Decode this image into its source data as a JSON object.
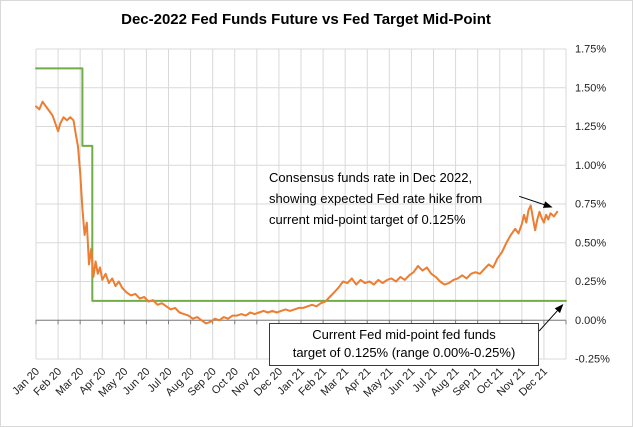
{
  "chart_data": {
    "type": "line",
    "title": "Dec-2022 Fed Funds Future vs Fed Target Mid-Point",
    "grid": true,
    "legend": "none",
    "colors": {
      "orange": "#ED7D31",
      "green": "#70AD47",
      "grid": "#D9D9D9",
      "axis": "#7F7F7F",
      "text": "#1F1F1F",
      "annotation": "#000000",
      "background": "#FFFFFF"
    },
    "x_axis": {
      "unit": "month",
      "range_months": [
        0,
        24
      ],
      "tick_labels": [
        "Jan 20",
        "Feb 20",
        "Mar 20",
        "Apr 20",
        "May 20",
        "Jun 20",
        "Jul 20",
        "Aug 20",
        "Sep 20",
        "Oct 20",
        "Nov 20",
        "Dec 20",
        "Jan 21",
        "Feb 21",
        "Mar 21",
        "Apr 21",
        "May 21",
        "Jun 21",
        "Jul 21",
        "Aug 21",
        "Sep 21",
        "Oct 21",
        "Nov 21",
        "Dec 21"
      ]
    },
    "y_axis": {
      "side": "right",
      "min": -0.25,
      "max": 1.75,
      "step": 0.25,
      "tick_labels": [
        "-0.25%",
        "0.00%",
        "0.25%",
        "0.50%",
        "0.75%",
        "1.00%",
        "1.25%",
        "1.50%",
        "1.75%"
      ]
    },
    "series": [
      {
        "id": "fed-target-mid-point",
        "name": "Fed target mid-point",
        "color": "#70AD47",
        "width": 2,
        "points": [
          [
            0,
            1.625
          ],
          [
            2.1,
            1.625
          ],
          [
            2.1,
            1.125
          ],
          [
            2.55,
            1.125
          ],
          [
            2.55,
            0.125
          ],
          [
            24,
            0.125
          ]
        ]
      },
      {
        "id": "dec-2022-fed-funds-future",
        "name": "Dec-2022 fed funds future (consensus funds rate)",
        "color": "#ED7D31",
        "width": 2,
        "points": [
          [
            0,
            1.38
          ],
          [
            0.15,
            1.36
          ],
          [
            0.3,
            1.41
          ],
          [
            0.45,
            1.38
          ],
          [
            0.6,
            1.35
          ],
          [
            0.75,
            1.32
          ],
          [
            0.9,
            1.26
          ],
          [
            1,
            1.22
          ],
          [
            1.1,
            1.27
          ],
          [
            1.25,
            1.31
          ],
          [
            1.4,
            1.29
          ],
          [
            1.55,
            1.31
          ],
          [
            1.7,
            1.29
          ],
          [
            1.8,
            1.2
          ],
          [
            1.9,
            1.12
          ],
          [
            2,
            0.95
          ],
          [
            2.1,
            0.72
          ],
          [
            2.2,
            0.55
          ],
          [
            2.3,
            0.63
          ],
          [
            2.4,
            0.36
          ],
          [
            2.5,
            0.46
          ],
          [
            2.6,
            0.28
          ],
          [
            2.7,
            0.38
          ],
          [
            2.8,
            0.3
          ],
          [
            2.9,
            0.34
          ],
          [
            3,
            0.26
          ],
          [
            3.15,
            0.3
          ],
          [
            3.3,
            0.24
          ],
          [
            3.45,
            0.27
          ],
          [
            3.6,
            0.22
          ],
          [
            3.75,
            0.25
          ],
          [
            3.9,
            0.21
          ],
          [
            4.1,
            0.18
          ],
          [
            4.3,
            0.16
          ],
          [
            4.5,
            0.17
          ],
          [
            4.7,
            0.14
          ],
          [
            4.9,
            0.15
          ],
          [
            5.1,
            0.12
          ],
          [
            5.3,
            0.13
          ],
          [
            5.5,
            0.1
          ],
          [
            5.7,
            0.11
          ],
          [
            5.9,
            0.09
          ],
          [
            6.1,
            0.07
          ],
          [
            6.3,
            0.08
          ],
          [
            6.5,
            0.05
          ],
          [
            6.7,
            0.04
          ],
          [
            6.9,
            0.03
          ],
          [
            7.1,
            0.01
          ],
          [
            7.3,
            0.02
          ],
          [
            7.5,
            0
          ],
          [
            7.7,
            -0.02
          ],
          [
            7.9,
            -0.01
          ],
          [
            8.1,
            0.01
          ],
          [
            8.3,
            0
          ],
          [
            8.5,
            0.02
          ],
          [
            8.7,
            0.01
          ],
          [
            8.9,
            0.03
          ],
          [
            9.1,
            0.03
          ],
          [
            9.3,
            0.04
          ],
          [
            9.5,
            0.03
          ],
          [
            9.7,
            0.05
          ],
          [
            9.9,
            0.04
          ],
          [
            10.1,
            0.05
          ],
          [
            10.3,
            0.06
          ],
          [
            10.5,
            0.05
          ],
          [
            10.7,
            0.06
          ],
          [
            10.9,
            0.05
          ],
          [
            11.1,
            0.06
          ],
          [
            11.3,
            0.07
          ],
          [
            11.5,
            0.06
          ],
          [
            11.7,
            0.07
          ],
          [
            11.9,
            0.08
          ],
          [
            12.1,
            0.08
          ],
          [
            12.3,
            0.09
          ],
          [
            12.5,
            0.1
          ],
          [
            12.7,
            0.09
          ],
          [
            12.9,
            0.11
          ],
          [
            13.1,
            0.12
          ],
          [
            13.3,
            0.15
          ],
          [
            13.5,
            0.18
          ],
          [
            13.7,
            0.21
          ],
          [
            13.9,
            0.25
          ],
          [
            14.1,
            0.24
          ],
          [
            14.3,
            0.27
          ],
          [
            14.5,
            0.23
          ],
          [
            14.7,
            0.26
          ],
          [
            14.9,
            0.24
          ],
          [
            15.1,
            0.25
          ],
          [
            15.3,
            0.23
          ],
          [
            15.5,
            0.26
          ],
          [
            15.7,
            0.24
          ],
          [
            15.9,
            0.26
          ],
          [
            16.1,
            0.27
          ],
          [
            16.3,
            0.25
          ],
          [
            16.5,
            0.28
          ],
          [
            16.7,
            0.26
          ],
          [
            16.9,
            0.29
          ],
          [
            17.1,
            0.31
          ],
          [
            17.3,
            0.35
          ],
          [
            17.5,
            0.32
          ],
          [
            17.7,
            0.34
          ],
          [
            17.9,
            0.3
          ],
          [
            18.1,
            0.28
          ],
          [
            18.3,
            0.25
          ],
          [
            18.5,
            0.23
          ],
          [
            18.7,
            0.24
          ],
          [
            18.9,
            0.26
          ],
          [
            19.1,
            0.27
          ],
          [
            19.3,
            0.29
          ],
          [
            19.5,
            0.27
          ],
          [
            19.7,
            0.3
          ],
          [
            19.9,
            0.31
          ],
          [
            20.1,
            0.3
          ],
          [
            20.3,
            0.33
          ],
          [
            20.5,
            0.36
          ],
          [
            20.7,
            0.34
          ],
          [
            20.9,
            0.4
          ],
          [
            21.1,
            0.44
          ],
          [
            21.3,
            0.5
          ],
          [
            21.5,
            0.55
          ],
          [
            21.7,
            0.59
          ],
          [
            21.85,
            0.56
          ],
          [
            22,
            0.62
          ],
          [
            22.1,
            0.68
          ],
          [
            22.2,
            0.63
          ],
          [
            22.3,
            0.71
          ],
          [
            22.4,
            0.74
          ],
          [
            22.5,
            0.66
          ],
          [
            22.6,
            0.58
          ],
          [
            22.7,
            0.65
          ],
          [
            22.8,
            0.7
          ],
          [
            22.9,
            0.66
          ],
          [
            23,
            0.63
          ],
          [
            23.1,
            0.68
          ],
          [
            23.2,
            0.65
          ],
          [
            23.3,
            0.69
          ],
          [
            23.45,
            0.67
          ],
          [
            23.6,
            0.7
          ]
        ]
      }
    ],
    "annotations": [
      {
        "id": "consensus-note",
        "boxed": false,
        "lines": [
          "Consensus funds rate in Dec 2022,",
          "showing expected Fed rate hike from",
          "current mid-point target of 0.125%"
        ],
        "arrow": {
          "from": [
            21.88,
            0.8
          ],
          "to": [
            23.35,
            0.73
          ]
        }
      },
      {
        "id": "fed-target-note",
        "boxed": true,
        "lines": [
          "Current Fed mid-point fed funds",
          "target of 0.125% (range 0.00%-0.25%)"
        ],
        "arrow": {
          "from": [
            22.78,
            -0.07
          ],
          "to": [
            23.85,
            0.1
          ]
        }
      }
    ]
  }
}
